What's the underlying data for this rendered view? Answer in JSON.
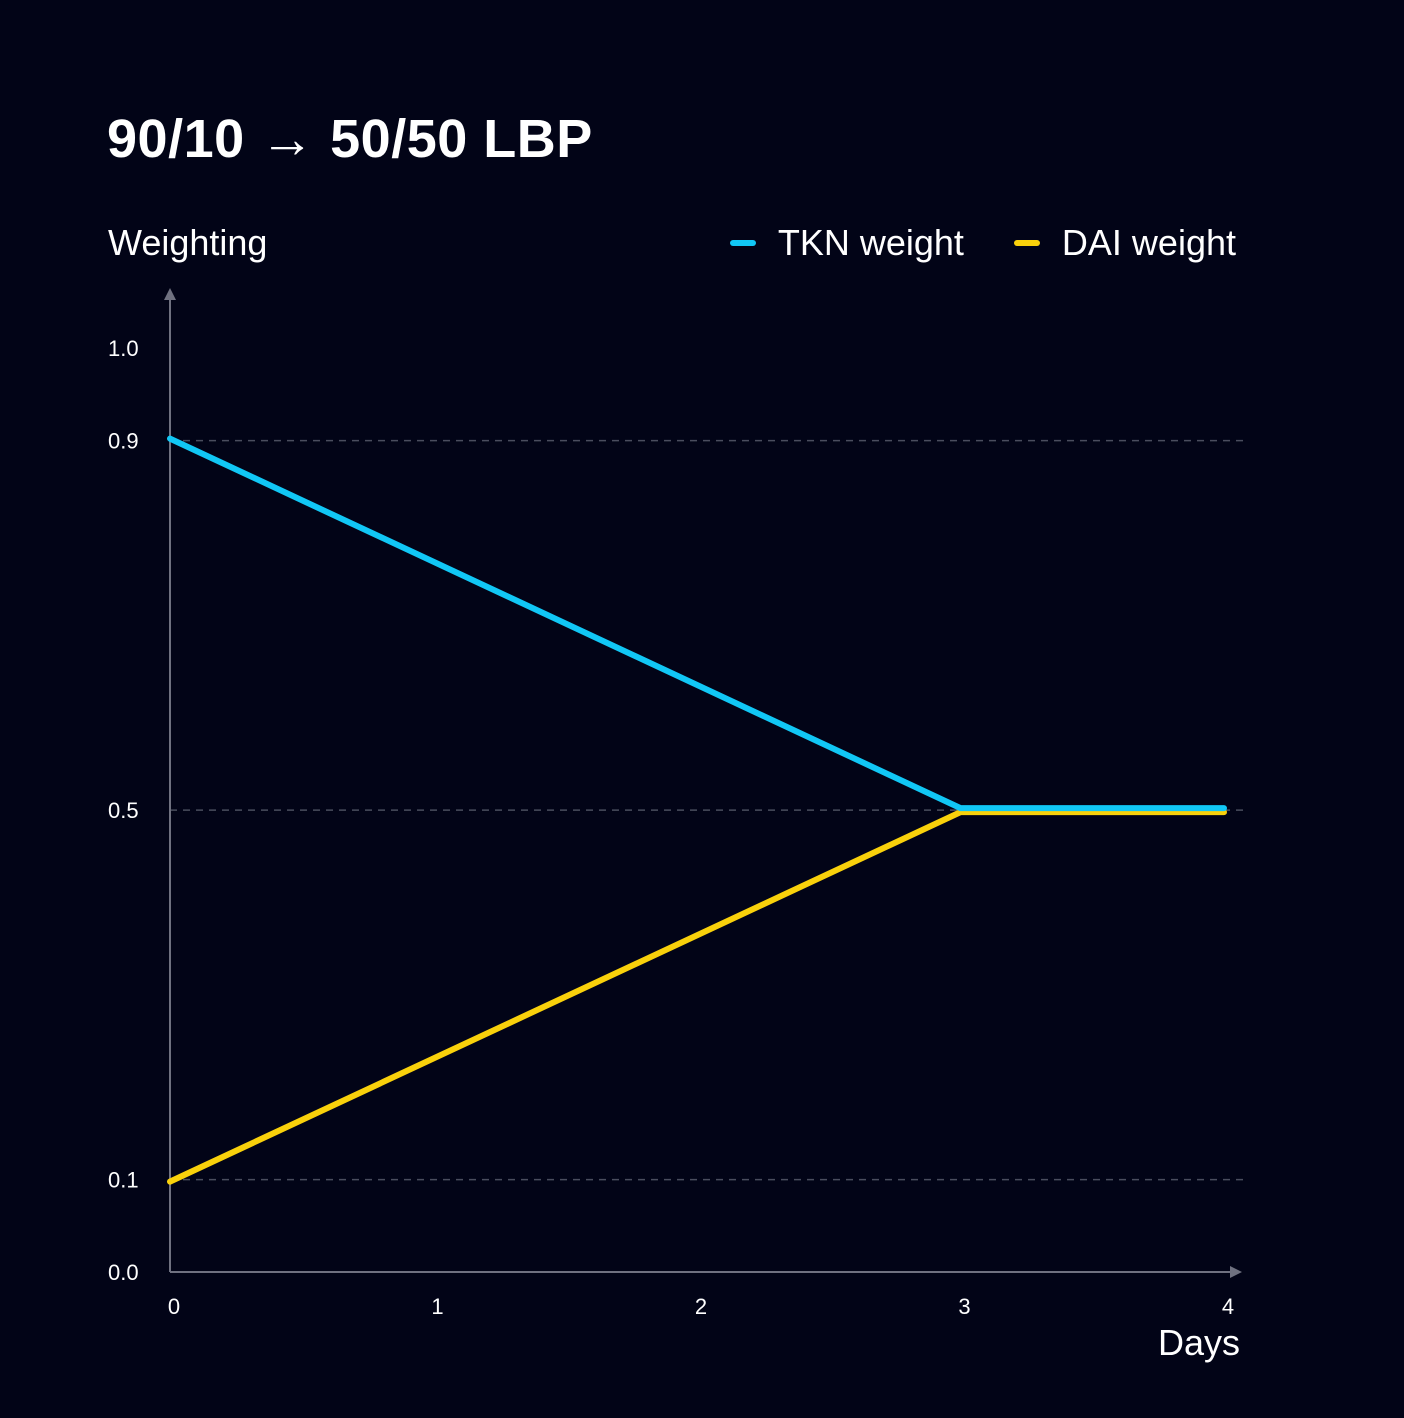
{
  "chart_data": {
    "type": "line",
    "title": "90/10 → 50/50 LBP",
    "ylabel": "Weighting",
    "xlabel": "Days",
    "x": [
      0,
      3,
      4
    ],
    "xticks": [
      "0",
      "1",
      "2",
      "3",
      "4"
    ],
    "yticks": [
      "0.0",
      "0.1",
      "0.5",
      "0.9",
      "1.0"
    ],
    "ylim": [
      0,
      1.0
    ],
    "xlim": [
      0,
      4
    ],
    "gridlines_y": [
      0.1,
      0.5,
      0.9
    ],
    "series": [
      {
        "name": "TKN weight",
        "color": "#11C7F5",
        "values": [
          0.9,
          0.5,
          0.5
        ]
      },
      {
        "name": "DAI weight",
        "color": "#F9D10B",
        "values": [
          0.1,
          0.5,
          0.5
        ]
      }
    ],
    "legend_position": "top-right"
  }
}
